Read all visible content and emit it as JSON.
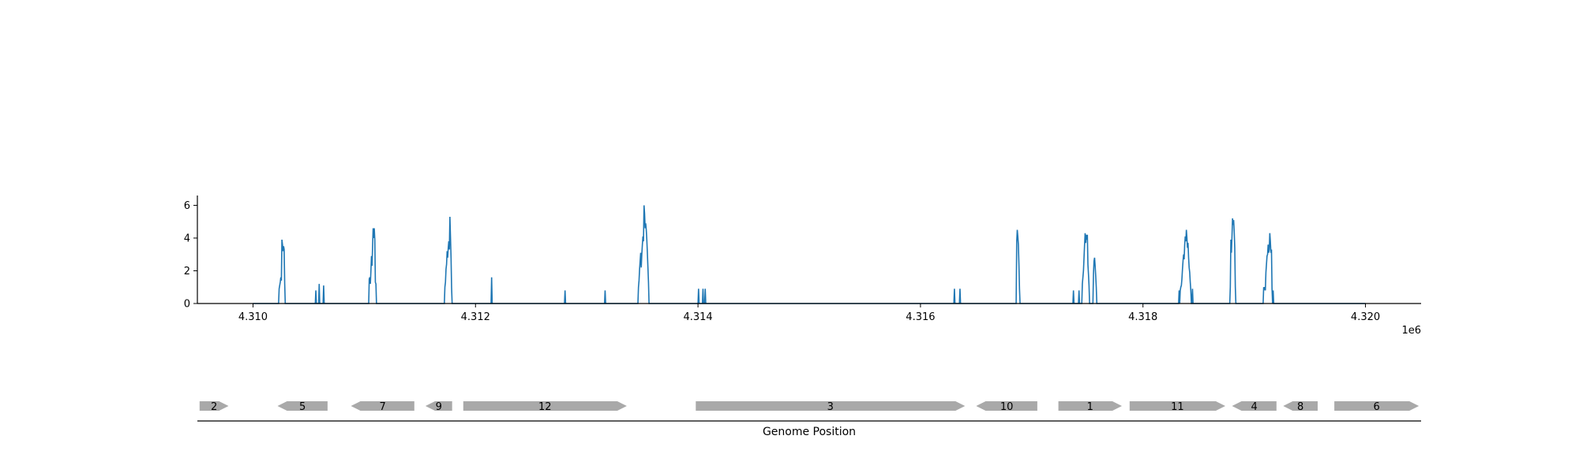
{
  "chart_data": [
    {
      "type": "line",
      "title": "",
      "xlabel": "",
      "ylabel": "",
      "x_offset_label": "1e6",
      "xlim": [
        4309500,
        4320500
      ],
      "ylim": [
        0,
        6.6
      ],
      "x_ticks": [
        4310000,
        4312000,
        4314000,
        4316000,
        4318000,
        4320000
      ],
      "x_tick_labels": [
        "4.310",
        "4.312",
        "4.314",
        "4.316",
        "4.318",
        "4.320"
      ],
      "y_ticks": [
        0,
        2,
        4,
        6
      ],
      "y_tick_labels": [
        "0",
        "2",
        "4",
        "6"
      ],
      "grid": false,
      "line_color": "#1f77b4",
      "series": [
        {
          "x": [
            4310000,
            4310230,
            4310235,
            4310240,
            4310245,
            4310250,
            4310255,
            4310260,
            4310265,
            4310270,
            4310275,
            4310280,
            4310285,
            4310290,
            4310560,
            4310565,
            4310570,
            4310590,
            4310595,
            4310600,
            4310630,
            4310635,
            4310640,
            4311040,
            4311045,
            4311050,
            4311055,
            4311060,
            4311065,
            4311070,
            4311075,
            4311080,
            4311085,
            4311090,
            4311095,
            4311100,
            4311105,
            4311110,
            4311720,
            4311725,
            4311730,
            4311735,
            4311740,
            4311745,
            4311750,
            4311755,
            4311760,
            4311765,
            4311770,
            4311775,
            4311780,
            4311785,
            4311790,
            4312140,
            4312145,
            4312150,
            4312800,
            4312805,
            4312810,
            4313160,
            4313165,
            4313170,
            4313460,
            4313465,
            4313470,
            4313475,
            4313480,
            4313485,
            4313490,
            4313495,
            4313500,
            4313505,
            4313510,
            4313515,
            4313520,
            4313525,
            4313530,
            4313535,
            4313540,
            4313545,
            4313550,
            4313555,
            4313560,
            4314000,
            4314005,
            4314010,
            4314040,
            4314045,
            4314050,
            4314060,
            4314065,
            4314070,
            4316300,
            4316305,
            4316310,
            4316350,
            4316355,
            4316360,
            4316860,
            4316865,
            4316870,
            4316875,
            4316880,
            4316885,
            4316890,
            4316895,
            4317370,
            4317375,
            4317380,
            4317420,
            4317425,
            4317430,
            4317450,
            4317455,
            4317460,
            4317465,
            4317470,
            4317475,
            4317480,
            4317485,
            4317490,
            4317495,
            4317500,
            4317505,
            4317510,
            4317515,
            4317520,
            4317550,
            4317555,
            4317560,
            4317565,
            4317570,
            4317575,
            4317580,
            4317585,
            4318320,
            4318325,
            4318330,
            4318335,
            4318340,
            4318345,
            4318350,
            4318355,
            4318360,
            4318365,
            4318370,
            4318375,
            4318380,
            4318385,
            4318390,
            4318395,
            4318400,
            4318405,
            4318410,
            4318415,
            4318420,
            4318425,
            4318430,
            4318435,
            4318440,
            4318445,
            4318450,
            4318455,
            4318780,
            4318785,
            4318790,
            4318795,
            4318800,
            4318805,
            4318810,
            4318815,
            4318820,
            4318825,
            4318830,
            4318835,
            4319080,
            4319085,
            4319090,
            4319095,
            4319100,
            4319105,
            4319110,
            4319115,
            4319120,
            4319125,
            4319130,
            4319135,
            4319140,
            4319145,
            4319150,
            4319155,
            4319160,
            4319165,
            4319170,
            4319175,
            4319180,
            4319185,
            4320000
          ],
          "y": [
            0,
            0,
            0.9,
            1.1,
            1.3,
            1.6,
            1.4,
            3.9,
            3.6,
            3.2,
            3.5,
            3.3,
            1.2,
            0,
            0,
            0.8,
            0,
            0,
            1.2,
            0,
            0,
            1.1,
            0,
            0,
            1.5,
            1.6,
            1.2,
            2.0,
            2.9,
            2.3,
            3.5,
            4.6,
            4.0,
            4.6,
            3.9,
            1.3,
            1.2,
            0,
            0,
            1.0,
            1.3,
            2.1,
            2.4,
            3.2,
            2.8,
            3.4,
            3.8,
            3.3,
            5.3,
            4.1,
            2.9,
            1.0,
            0,
            0,
            1.6,
            0,
            0,
            0.8,
            0,
            0,
            0.8,
            0,
            0,
            1.0,
            1.4,
            2.1,
            2.6,
            3.1,
            2.2,
            3.0,
            3.6,
            4.1,
            3.8,
            6.0,
            5.5,
            4.6,
            4.9,
            4.5,
            3.9,
            3.1,
            2.2,
            1.3,
            0,
            0,
            0.9,
            0,
            0,
            0.9,
            0,
            0,
            0.9,
            0,
            0,
            0.9,
            0,
            0,
            0.9,
            0,
            0,
            3.8,
            4.5,
            4.1,
            3.6,
            2.4,
            0.9,
            0,
            0,
            0.8,
            0,
            0,
            0.8,
            0,
            0,
            1.2,
            1.6,
            2.0,
            2.8,
            3.6,
            4.3,
            3.7,
            4.2,
            3.9,
            4.2,
            2.4,
            1.8,
            1.1,
            0,
            0,
            1.8,
            2.6,
            2.8,
            2.3,
            1.7,
            1.0,
            0,
            0,
            0.8,
            0,
            0.8,
            1.0,
            1.1,
            1.5,
            2.1,
            2.6,
            3.0,
            2.7,
            3.6,
            4.1,
            3.8,
            4.5,
            4.0,
            3.4,
            3.7,
            2.8,
            2.2,
            1.9,
            1.3,
            0.8,
            0,
            0,
            0.9,
            0,
            0,
            0,
            1.0,
            3.9,
            3.1,
            4.1,
            5.2,
            4.8,
            5.1,
            4.4,
            3.4,
            1.0,
            0,
            0,
            1.0,
            0.9,
            1.0,
            0.8,
            1.9,
            2.4,
            2.9,
            3.0,
            3.6,
            3.1,
            3.3,
            4.3,
            3.8,
            3.1,
            3.3,
            0.9,
            0,
            0.8,
            0,
            0,
            0,
            0
          ]
        }
      ]
    },
    {
      "type": "gene-track",
      "title": "",
      "xlabel": "Genome Position",
      "xlim": [
        4309500,
        4320500
      ],
      "color": "#a9a9a9",
      "genes": [
        {
          "label": "2",
          "start": 4309520,
          "end": 4309780,
          "strand": "+"
        },
        {
          "label": "5",
          "start": 4310220,
          "end": 4310670,
          "strand": "-"
        },
        {
          "label": "7",
          "start": 4310880,
          "end": 4311450,
          "strand": "-"
        },
        {
          "label": "9",
          "start": 4311550,
          "end": 4311790,
          "strand": "-"
        },
        {
          "label": "12",
          "start": 4311890,
          "end": 4313360,
          "strand": "+"
        },
        {
          "label": "3",
          "start": 4313980,
          "end": 4316400,
          "strand": "+"
        },
        {
          "label": "10",
          "start": 4316500,
          "end": 4317050,
          "strand": "-"
        },
        {
          "label": "1",
          "start": 4317240,
          "end": 4317810,
          "strand": "+"
        },
        {
          "label": "11",
          "start": 4317880,
          "end": 4318740,
          "strand": "+"
        },
        {
          "label": "4",
          "start": 4318800,
          "end": 4319200,
          "strand": "-"
        },
        {
          "label": "8",
          "start": 4319260,
          "end": 4319570,
          "strand": "-"
        },
        {
          "label": "6",
          "start": 4319720,
          "end": 4320480,
          "strand": "+"
        }
      ]
    }
  ]
}
